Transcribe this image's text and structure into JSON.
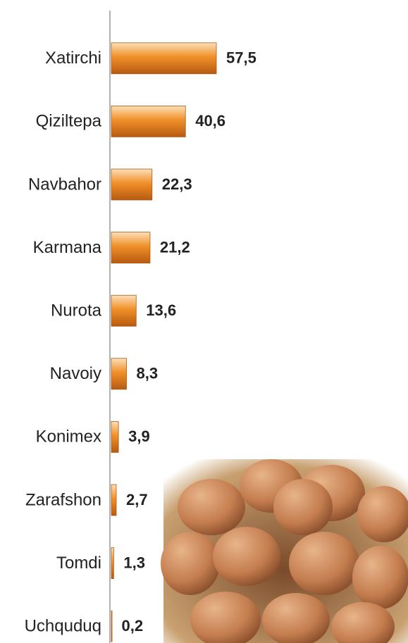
{
  "chart_data": {
    "type": "barh",
    "categories": [
      "Xatirchi",
      "Qiziltepa",
      "Navbahor",
      "Karmana",
      "Nurota",
      "Navoiy",
      "Konimex",
      "Zarafshon",
      "Tomdi",
      "Uchquduq"
    ],
    "values": [
      57.5,
      40.6,
      22.3,
      21.2,
      13.6,
      8.3,
      3.9,
      2.7,
      1.3,
      0.2
    ],
    "value_labels": [
      "57,5",
      "40,6",
      "22,3",
      "21,2",
      "13,6",
      "8,3",
      "3,9",
      "2,7",
      "1,3",
      "0,2"
    ],
    "color": "#f0902a"
  }
}
